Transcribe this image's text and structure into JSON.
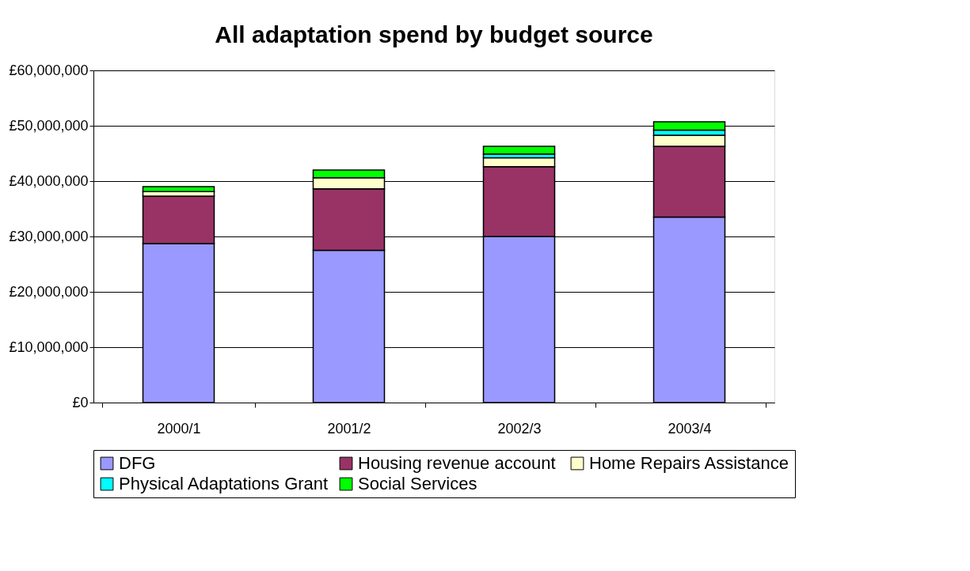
{
  "chart_data": {
    "type": "bar",
    "stacked": true,
    "title": "All adaptation spend by budget source",
    "categories": [
      "2000/1",
      "2001/2",
      "2002/3",
      "2003/4"
    ],
    "series": [
      {
        "name": "DFG",
        "color": "#9999ff",
        "values": [
          28700000,
          27500000,
          30000000,
          33500000
        ]
      },
      {
        "name": "Housing revenue  account",
        "color": "#993366",
        "values": [
          8600000,
          11100000,
          12600000,
          12800000
        ]
      },
      {
        "name": "Home Repairs Assistance",
        "color": "#ffffcc",
        "values": [
          800000,
          2000000,
          1600000,
          2000000
        ]
      },
      {
        "name": "Physical Adaptations Grant",
        "color": "#00ffff",
        "values": [
          null,
          null,
          700000,
          900000
        ]
      },
      {
        "name": "Social  Services",
        "color": "#00ff00",
        "values": [
          900000,
          1400000,
          1400000,
          1500000
        ]
      }
    ],
    "ylim": [
      0,
      60000000
    ],
    "yticks": [
      {
        "value": 0,
        "label": "£0"
      },
      {
        "value": 10000000,
        "label": "£10,000,000"
      },
      {
        "value": 20000000,
        "label": "£20,000,000"
      },
      {
        "value": 30000000,
        "label": "£30,000,000"
      },
      {
        "value": 40000000,
        "label": "£40,000,000"
      },
      {
        "value": 50000000,
        "label": "£50,000,000"
      },
      {
        "value": 60000000,
        "label": "£60,000,000"
      }
    ],
    "grid": "y",
    "legend": "bottom"
  }
}
